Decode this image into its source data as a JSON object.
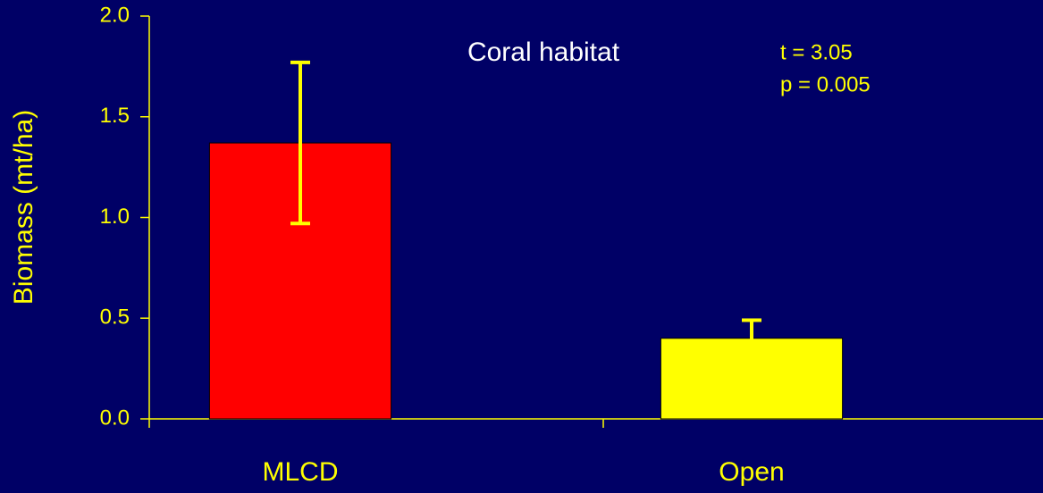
{
  "chart_data": {
    "type": "bar",
    "ylabel": "Biomass (mt/ha)",
    "annotations": [
      "Coral habitat",
      "t = 3.05",
      "p = 0.005"
    ],
    "categories": [
      "MLCD",
      "Open"
    ],
    "values": [
      1.37,
      0.4
    ],
    "errors": [
      0.4,
      0.09
    ],
    "colors": [
      "#ff0000",
      "#ffff00"
    ],
    "error_color": "#ffff00",
    "ylim": [
      0,
      2
    ],
    "yticks": [
      {
        "value": 0,
        "label": "0.0"
      },
      0.5,
      {
        "value": 1,
        "label": "1.0"
      },
      1.5,
      {
        "value": 2,
        "label": "2.0"
      }
    ]
  }
}
